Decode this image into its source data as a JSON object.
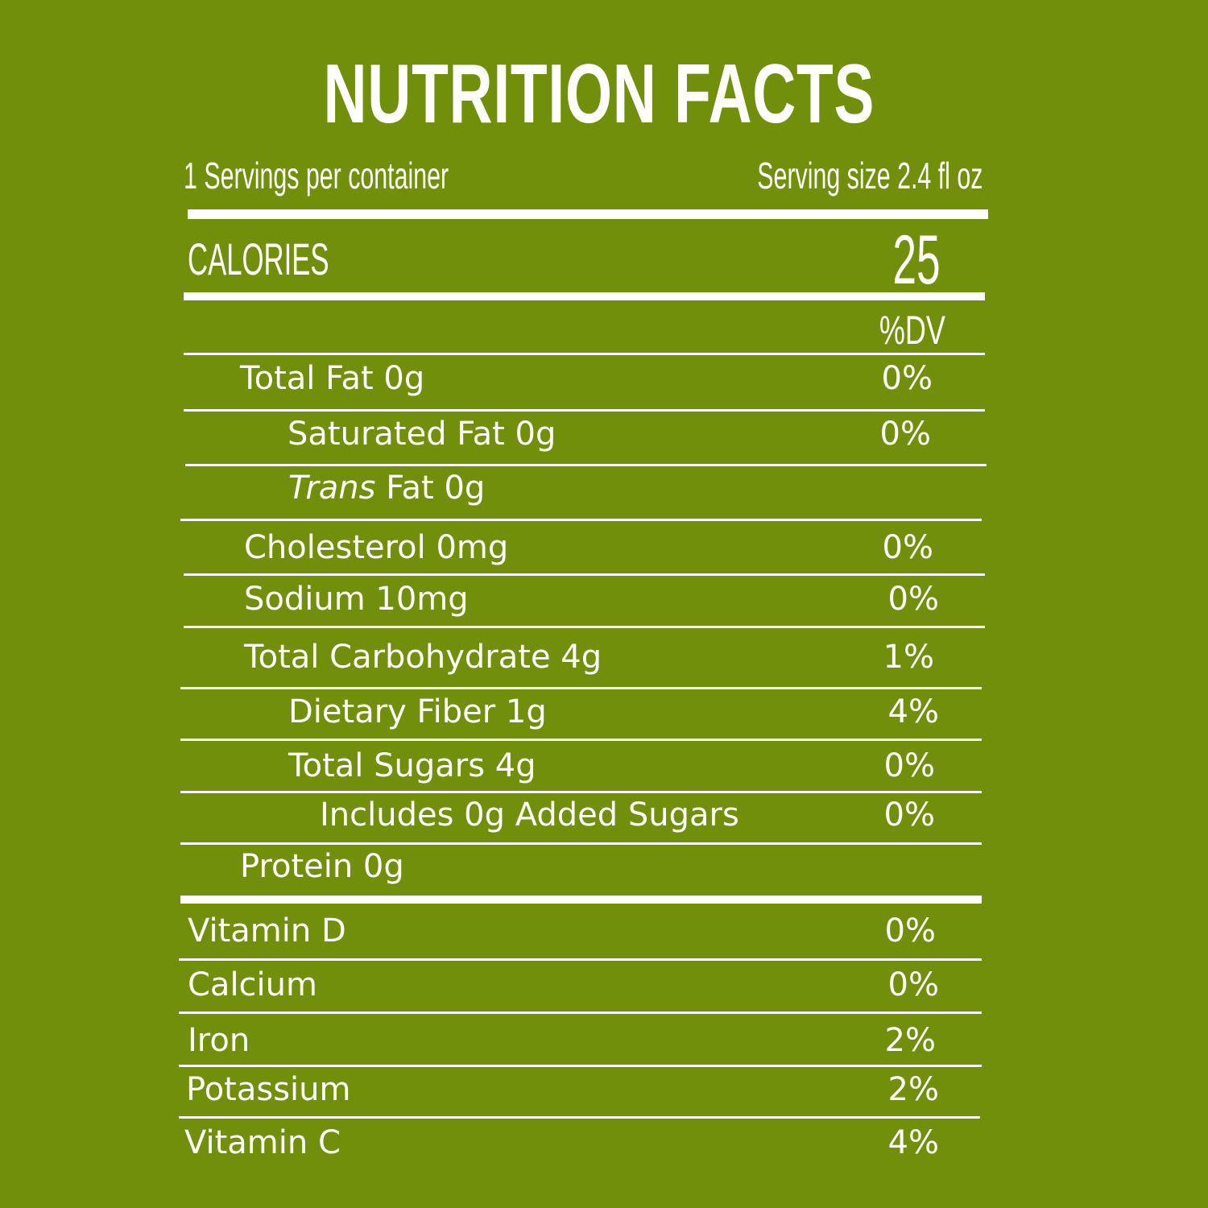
{
  "title": "NUTRITION FACTS",
  "servings_per_container": "1 Servings per container",
  "serving_size": "Serving size 2.4 fl oz",
  "calories": {
    "label": "CALORIES",
    "value": "25"
  },
  "dv_header": "%DV",
  "nutrients": [
    {
      "label": "Total Fat 0g",
      "dv": "0%"
    },
    {
      "label": "Saturated Fat 0g",
      "dv": "0%"
    },
    {
      "label_italic": "Trans",
      "label": " Fat 0g",
      "dv": ""
    },
    {
      "label": "Cholesterol 0mg",
      "dv": "0%"
    },
    {
      "label": "Sodium 10mg",
      "dv": "0%"
    },
    {
      "label": "Total Carbohydrate 4g",
      "dv": "1%"
    },
    {
      "label": "Dietary Fiber 1g",
      "dv": "4%"
    },
    {
      "label": "Total Sugars 4g",
      "dv": "0%"
    },
    {
      "label": "Includes 0g Added Sugars",
      "dv": "0%"
    },
    {
      "label": "Protein 0g",
      "dv": ""
    }
  ],
  "vitamins": [
    {
      "label": "Vitamin D",
      "dv": "0%"
    },
    {
      "label": "Calcium",
      "dv": "0%"
    },
    {
      "label": "Iron",
      "dv": "2%"
    },
    {
      "label": "Potassium",
      "dv": "2%"
    },
    {
      "label": "Vitamin C",
      "dv": "4%"
    }
  ]
}
